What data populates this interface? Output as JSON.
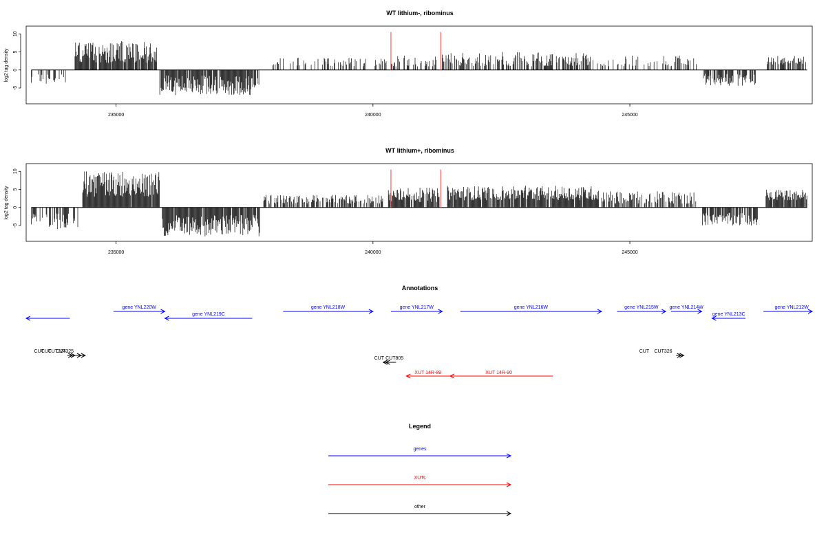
{
  "colors": {
    "genes": "#0000ff",
    "xuts": "#ff0000",
    "other": "#000000",
    "marker": "#ff6666",
    "signal": "#000000"
  },
  "chart_data": [
    {
      "type": "bar",
      "title": "WT lithium-, ribominus",
      "ylabel": "log2 tag density",
      "xlim": [
        233250,
        248550
      ],
      "ylim": [
        -9,
        11
      ],
      "xticks": [
        235000,
        240000,
        245000
      ],
      "yticks": [
        -5,
        0,
        5,
        10
      ],
      "markers_x": [
        240350,
        241320
      ],
      "segments": [
        {
          "start": 233350,
          "end": 234030,
          "min": -4,
          "max": -1,
          "density": 0.35
        },
        {
          "start": 234200,
          "end": 235800,
          "min": 2,
          "max": 8,
          "density": 0.95
        },
        {
          "start": 235850,
          "end": 237780,
          "min": -7,
          "max": -1.5,
          "density": 0.9
        },
        {
          "start": 238050,
          "end": 240300,
          "min": 1,
          "max": 3.5,
          "density": 0.3
        },
        {
          "start": 240350,
          "end": 241250,
          "min": 1,
          "max": 4,
          "density": 0.45
        },
        {
          "start": 241350,
          "end": 244300,
          "min": 1,
          "max": 5,
          "density": 0.55
        },
        {
          "start": 244350,
          "end": 246300,
          "min": 1,
          "max": 4,
          "density": 0.3
        },
        {
          "start": 246430,
          "end": 247450,
          "min": -4.5,
          "max": -1,
          "density": 0.75
        },
        {
          "start": 247650,
          "end": 248450,
          "min": 1.5,
          "max": 4,
          "density": 0.65
        }
      ]
    },
    {
      "type": "bar",
      "title": "WT lithium+, ribominus",
      "ylabel": "log2 tag density",
      "xlim": [
        233250,
        248550
      ],
      "ylim": [
        -9,
        11
      ],
      "xticks": [
        235000,
        240000,
        245000
      ],
      "yticks": [
        -5,
        0,
        5,
        10
      ],
      "markers_x": [
        240350,
        241320
      ],
      "segments": [
        {
          "start": 233350,
          "end": 234300,
          "min": -6,
          "max": -1.5,
          "density": 0.6
        },
        {
          "start": 234350,
          "end": 235850,
          "min": 3,
          "max": 10,
          "density": 0.98
        },
        {
          "start": 235900,
          "end": 237800,
          "min": -8,
          "max": -2,
          "density": 0.95
        },
        {
          "start": 237850,
          "end": 240200,
          "min": 1,
          "max": 3.5,
          "density": 0.55
        },
        {
          "start": 240300,
          "end": 241300,
          "min": 1.5,
          "max": 5.5,
          "density": 0.85
        },
        {
          "start": 241450,
          "end": 244400,
          "min": 2,
          "max": 6,
          "density": 0.9
        },
        {
          "start": 244450,
          "end": 246300,
          "min": 1,
          "max": 4.5,
          "density": 0.6
        },
        {
          "start": 246400,
          "end": 247500,
          "min": -5,
          "max": -1.5,
          "density": 0.8
        },
        {
          "start": 247650,
          "end": 248450,
          "min": 2,
          "max": 5,
          "density": 0.95
        }
      ]
    }
  ],
  "annotations": {
    "title": "Annotations",
    "genes": [
      {
        "label": "",
        "start": 233250,
        "end": 234100,
        "strand": "-",
        "row": 1
      },
      {
        "label": "gene YNL220W",
        "start": 234950,
        "end": 235950,
        "strand": "+",
        "row": 0
      },
      {
        "label": "gene YNL219C",
        "start": 235950,
        "end": 237650,
        "strand": "-",
        "row": 1
      },
      {
        "label": "gene YNL218W",
        "start": 238250,
        "end": 240000,
        "strand": "+",
        "row": 0
      },
      {
        "label": "gene YNL217W",
        "start": 240350,
        "end": 241350,
        "strand": "+",
        "row": 0
      },
      {
        "label": "gene YNL216W",
        "start": 241700,
        "end": 244450,
        "strand": "+",
        "row": 0
      },
      {
        "label": "gene YNL215W",
        "start": 244750,
        "end": 245700,
        "strand": "+",
        "row": 0
      },
      {
        "label": "gene YNL214W",
        "start": 245800,
        "end": 246400,
        "strand": "+",
        "row": 0
      },
      {
        "label": "gene YNL213C",
        "start": 246600,
        "end": 247250,
        "strand": "-",
        "row": 1
      },
      {
        "label": "gene YNL212W",
        "start": 247600,
        "end": 248700,
        "strand": "+",
        "row": 0
      }
    ],
    "other": [
      {
        "label": "CUT",
        "start": 234050,
        "end": 234150,
        "strand": "+",
        "label_x": 233500
      },
      {
        "label": "CUT",
        "start": 234100,
        "end": 234200,
        "strand": "+",
        "label_x": 233640
      },
      {
        "label": "CUT324",
        "start": 234200,
        "end": 234320,
        "strand": "+",
        "label_x": 233850
      },
      {
        "label": "CUT325",
        "start": 234250,
        "end": 234400,
        "strand": "+",
        "label_x": 234000
      },
      {
        "label": "CUT",
        "start": 240200,
        "end": 240300,
        "strand": "-",
        "label_x": 240120
      },
      {
        "label": "CUT805",
        "start": 240250,
        "end": 240450,
        "strand": "-",
        "label_x": 240420
      },
      {
        "label": "CUT",
        "start": 245900,
        "end": 246000,
        "strand": "+",
        "label_x": 245280
      },
      {
        "label": "CUT326",
        "start": 245900,
        "end": 246050,
        "strand": "+",
        "label_x": 245650
      }
    ],
    "xuts": [
      {
        "label": "XUT 14R-89",
        "start": 240650,
        "end": 241500,
        "strand": "-",
        "label_x": 241070
      },
      {
        "label": "XUT 14R-90",
        "start": 241500,
        "end": 243500,
        "strand": "-",
        "label_x": 242450
      }
    ]
  },
  "legend": {
    "title": "Legend",
    "items": [
      {
        "label": "genes",
        "color": "#0000ff"
      },
      {
        "label": "XUTs",
        "color": "#ff0000"
      },
      {
        "label": "other",
        "color": "#000000"
      }
    ]
  }
}
